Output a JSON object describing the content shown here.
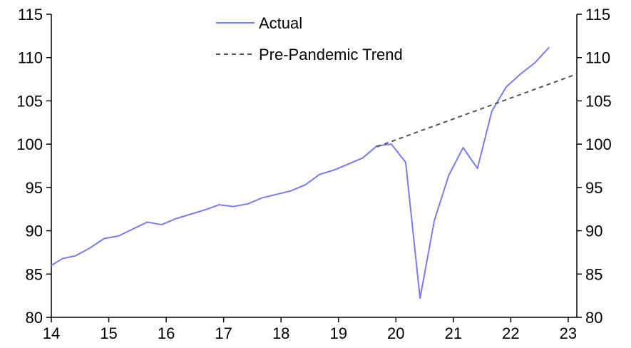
{
  "chart_data": {
    "type": "line",
    "title": "",
    "xlabel": "",
    "ylabel": "",
    "xlim": [
      14,
      23.15
    ],
    "ylim": [
      80,
      115
    ],
    "x_ticks": [
      14,
      15,
      16,
      17,
      18,
      19,
      20,
      21,
      22,
      23
    ],
    "x_tick_labels": [
      "14",
      "15",
      "16",
      "17",
      "18",
      "19",
      "20",
      "21",
      "22",
      "23"
    ],
    "y_ticks": [
      80,
      85,
      90,
      95,
      100,
      105,
      110,
      115
    ],
    "y_tick_labels": [
      "80",
      "85",
      "90",
      "95",
      "100",
      "105",
      "110",
      "115"
    ],
    "y_axis_right": true,
    "grid": false,
    "legend_position": "top-center",
    "series": [
      {
        "name": "Actual",
        "color": "#7b7bf0",
        "style": "solid",
        "x": [
          14.0,
          14.2,
          14.42,
          14.67,
          14.92,
          15.17,
          15.42,
          15.67,
          15.92,
          16.17,
          16.42,
          16.67,
          16.92,
          17.17,
          17.42,
          17.67,
          17.92,
          18.17,
          18.42,
          18.67,
          18.92,
          19.17,
          19.42,
          19.67,
          19.92,
          20.17,
          20.42,
          20.67,
          20.92,
          21.17,
          21.42,
          21.67,
          21.92,
          22.17,
          22.42,
          22.67
        ],
        "values": [
          86.0,
          86.8,
          87.1,
          88.0,
          89.1,
          89.4,
          90.2,
          91.0,
          90.7,
          91.4,
          91.9,
          92.4,
          93.0,
          92.8,
          93.1,
          93.8,
          94.2,
          94.6,
          95.3,
          96.5,
          97.0,
          97.7,
          98.4,
          99.8,
          100.0,
          97.9,
          82.2,
          91.2,
          96.4,
          99.6,
          97.2,
          103.8,
          106.6,
          108.1,
          109.4,
          111.2
        ]
      },
      {
        "name": "Pre-Pandemic Trend",
        "color": "#555555",
        "style": "dashed",
        "x": [
          19.67,
          23.15
        ],
        "values": [
          99.7,
          108.1
        ]
      }
    ]
  }
}
